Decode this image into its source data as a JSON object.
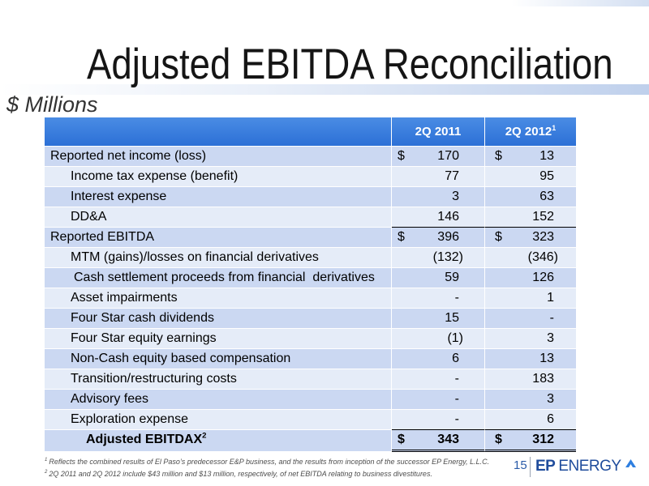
{
  "slide": {
    "title": "Adjusted EBITDA Reconciliation",
    "units": "$ Millions",
    "page_number": "15",
    "logo": {
      "part1": "EP",
      "part2": "ENERGY"
    }
  },
  "colors": {
    "header_blue": "#2b6fd6",
    "band_dark": "#cbd8f2",
    "band_light": "#e5ecf8",
    "logo_blue": "#1f4c9c"
  },
  "icons": {
    "logo_mark": "ep-energy-triangle-icon"
  },
  "table": {
    "columns": [
      {
        "label": "2Q 2011"
      },
      {
        "label": "2Q 2012",
        "note": "1"
      }
    ],
    "rows": [
      {
        "label": "Reported net income (loss)",
        "currency": "$",
        "values": [
          "170",
          "13"
        ]
      },
      {
        "label": "Income tax expense (benefit)",
        "values": [
          "77",
          "95"
        ]
      },
      {
        "label": "Interest expense",
        "values": [
          "3",
          "63"
        ]
      },
      {
        "label": "DD&A",
        "values": [
          "146",
          "152"
        ]
      },
      {
        "label": "Reported EBITDA",
        "currency": "$",
        "values": [
          "396",
          "323"
        ]
      },
      {
        "label": "MTM (gains)/losses on financial derivatives",
        "values": [
          "(132)",
          "(346)"
        ]
      },
      {
        "label": "Cash settlement proceeds from financial  derivatives",
        "values": [
          "59",
          "126"
        ]
      },
      {
        "label": "Asset impairments",
        "values": [
          "-",
          "1"
        ]
      },
      {
        "label": "Four Star cash dividends",
        "values": [
          "15",
          "-"
        ]
      },
      {
        "label": "Four Star equity earnings",
        "values": [
          "(1)",
          "3"
        ]
      },
      {
        "label": "Non-Cash equity based compensation",
        "values": [
          "6",
          "13"
        ]
      },
      {
        "label": "Transition/restructuring costs",
        "values": [
          "-",
          "183"
        ]
      },
      {
        "label": "Advisory fees",
        "values": [
          "-",
          "3"
        ]
      },
      {
        "label": "Exploration expense",
        "values": [
          "-",
          "6"
        ]
      },
      {
        "label": "Adjusted EBITDAX",
        "note": "2",
        "currency": "$",
        "values": [
          "343",
          "312"
        ]
      }
    ]
  },
  "footnotes": [
    {
      "marker": "1",
      "text": "Reflects the combined results of El Paso’s predecessor E&P business, and the results from inception of the successor EP Energy, L.L.C."
    },
    {
      "marker": "2",
      "text": "2Q 2011 and 2Q 2012 include $43 million and $13 million, respectively, of net EBITDA relating to business divestitures."
    }
  ]
}
